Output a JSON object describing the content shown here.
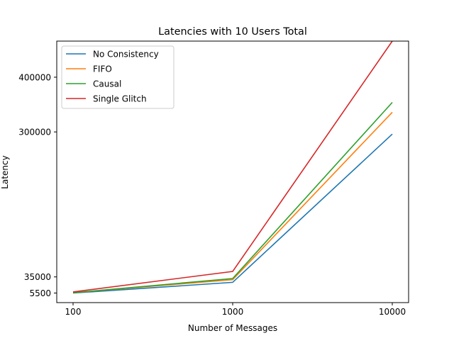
{
  "chart_data": {
    "type": "line",
    "title": "Latencies with 10 Users Total",
    "xlabel": "Number of Messages",
    "ylabel": "Latency",
    "x": [
      100,
      1000,
      10000
    ],
    "x_scale": "log",
    "x_ticks": [
      "100",
      "1000",
      "10000"
    ],
    "y_ticks": [
      "5500",
      "35000",
      "300000",
      "400000"
    ],
    "y_tick_values": [
      5500,
      35000,
      300000,
      400000
    ],
    "ylim": [
      -12000,
      466000
    ],
    "series": [
      {
        "name": "No Consistency",
        "color": "#1f77b4",
        "values": [
          5500,
          25000,
          296000
        ]
      },
      {
        "name": "FIFO",
        "color": "#ff7f0e",
        "values": [
          6000,
          30000,
          336000
        ]
      },
      {
        "name": "Causal",
        "color": "#2ca02c",
        "values": [
          6000,
          32000,
          354000
        ]
      },
      {
        "name": "Single Glitch",
        "color": "#d62728",
        "values": [
          7500,
          45000,
          466000
        ]
      }
    ],
    "legend_position": "upper-left",
    "grid": false
  }
}
